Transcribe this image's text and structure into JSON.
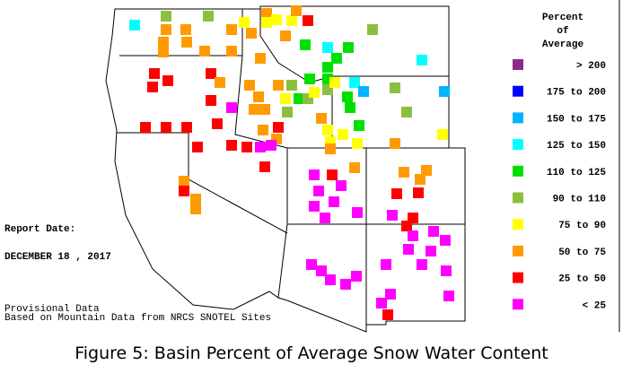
{
  "legend": {
    "title": [
      "Percent",
      "of",
      "Average"
    ],
    "items": [
      {
        "label": "> 200",
        "color": "#8b2a8b"
      },
      {
        "label": "175 to 200",
        "color": "#0000ff"
      },
      {
        "label": "150 to 175",
        "color": "#00b4ff"
      },
      {
        "label": "125 to 150",
        "color": "#00ffff"
      },
      {
        "label": "110 to 125",
        "color": "#00e000"
      },
      {
        "label": "90 to 110",
        "color": "#8cbf3f"
      },
      {
        "label": "75 to 90",
        "color": "#ffff00"
      },
      {
        "label": "50 to 75",
        "color": "#ff9a00"
      },
      {
        "label": "25 to 50",
        "color": "#ff0000"
      },
      {
        "label": "< 25",
        "color": "#ff00ff"
      }
    ]
  },
  "report_date_label": "Report Date:",
  "report_date": "DECEMBER 18 , 2017",
  "notes": [
    "Provisional Data",
    "Based on Mountain Data from NRCS SNOTEL Sites"
  ],
  "caption": "Figure 5: Basin Percent of Average Snow Water Content"
}
